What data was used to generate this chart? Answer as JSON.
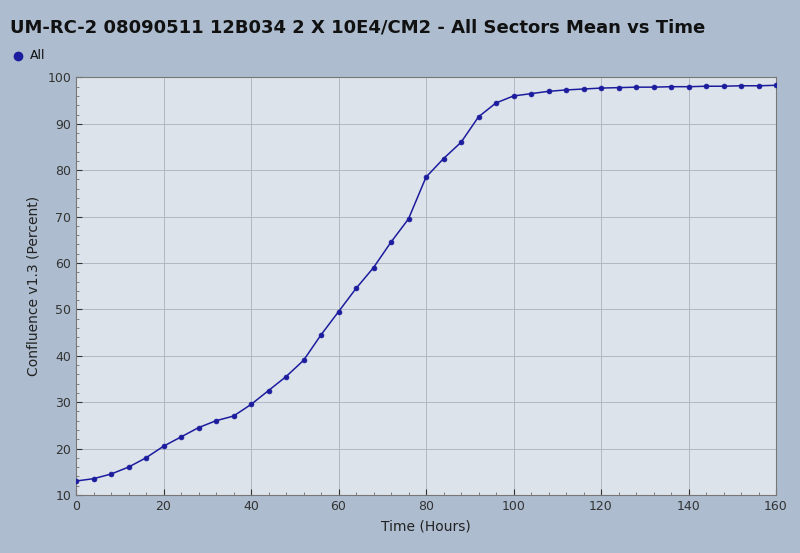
{
  "title": "UM-RC-2 08090511 12B034 2 X 10E4/CM2 - All Sectors Mean vs Time",
  "xlabel": "Time (Hours)",
  "ylabel": "Confluence v1.3 (Percent)",
  "legend_label": "All",
  "line_color": "#1c1c9e",
  "marker_color": "#1c1c9e",
  "bg_outer": "#adbdcf",
  "bg_title": "#b8cadc",
  "bg_plot": "#dde3ea",
  "xlim": [
    0,
    160
  ],
  "ylim": [
    10,
    100
  ],
  "xticks": [
    0,
    20,
    40,
    60,
    80,
    100,
    120,
    140,
    160
  ],
  "yticks": [
    10,
    20,
    30,
    40,
    50,
    60,
    70,
    80,
    90,
    100
  ],
  "time_hours": [
    0,
    4,
    8,
    12,
    16,
    20,
    24,
    28,
    32,
    36,
    40,
    44,
    48,
    52,
    56,
    60,
    64,
    68,
    72,
    76,
    80,
    84,
    88,
    92,
    96,
    100,
    104,
    108,
    112,
    116,
    120,
    124,
    128,
    132,
    136,
    140,
    144,
    148,
    152,
    156,
    160
  ],
  "confluence": [
    13.0,
    13.5,
    14.5,
    16.0,
    18.0,
    20.5,
    22.5,
    24.5,
    26.0,
    27.0,
    29.5,
    32.5,
    35.5,
    39.0,
    44.5,
    49.5,
    54.5,
    59.0,
    64.5,
    69.5,
    78.5,
    82.5,
    86.0,
    91.5,
    94.5,
    96.0,
    96.5,
    97.0,
    97.3,
    97.5,
    97.7,
    97.8,
    97.9,
    97.9,
    98.0,
    98.0,
    98.1,
    98.1,
    98.2,
    98.2,
    98.3
  ],
  "figsize": [
    8.0,
    5.53
  ],
  "dpi": 100,
  "title_fontsize": 13,
  "legend_fontsize": 9,
  "axis_label_fontsize": 10,
  "tick_labelsize": 9
}
